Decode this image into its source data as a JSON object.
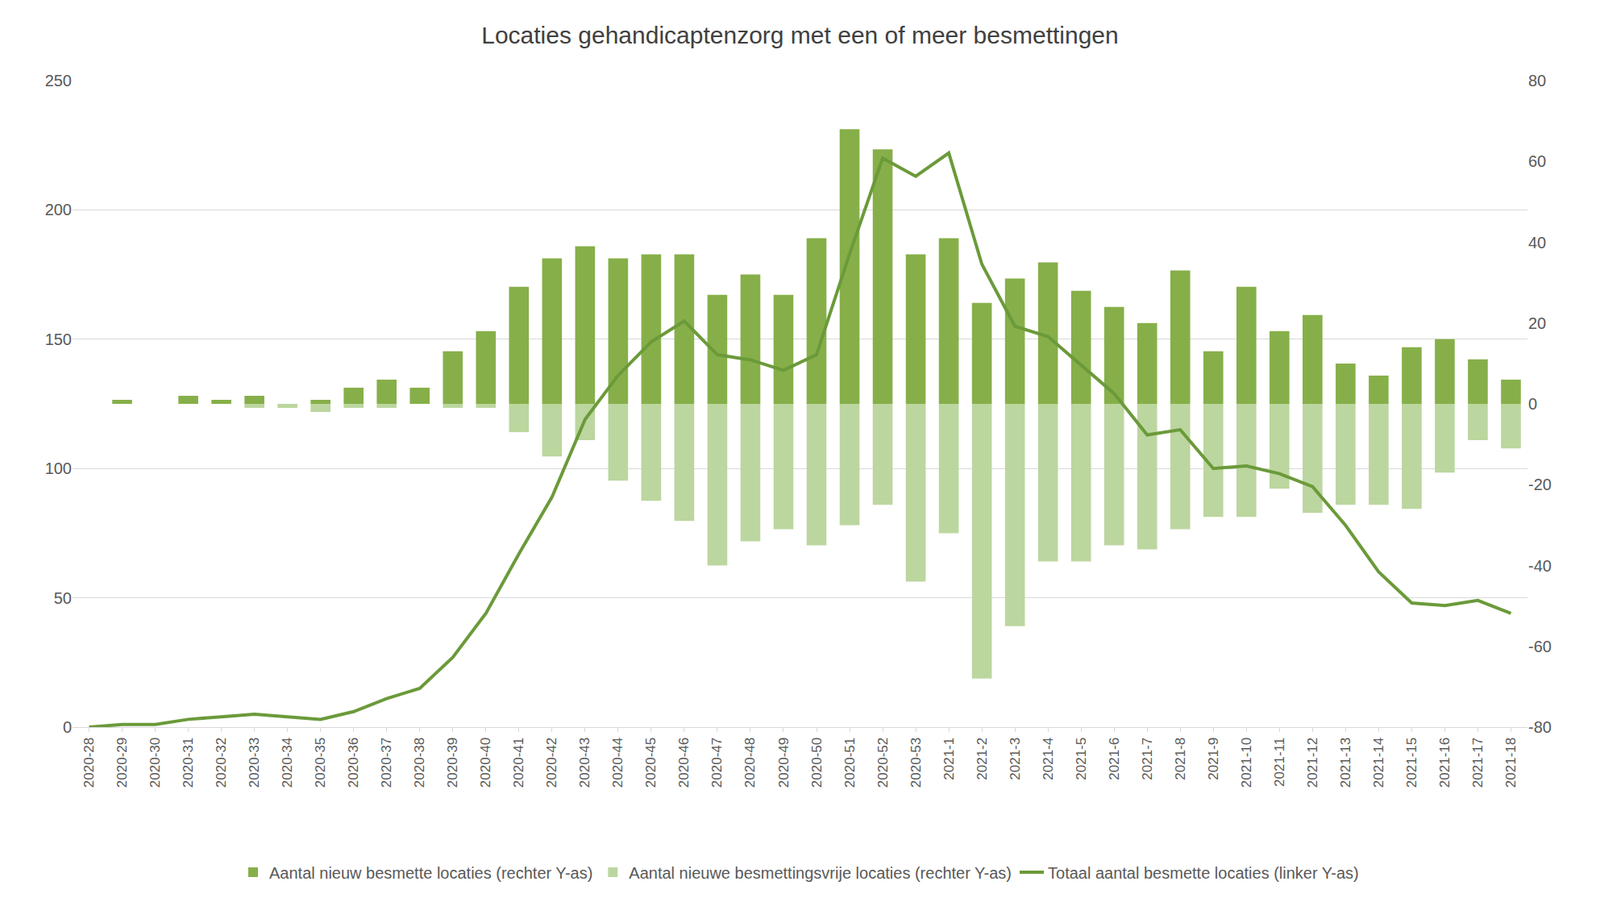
{
  "chart_data": {
    "type": "bar",
    "title": "Locaties gehandicaptenzorg met een of meer besmettingen",
    "categories": [
      "2020-28",
      "2020-29",
      "2020-30",
      "2020-31",
      "2020-32",
      "2020-33",
      "2020-34",
      "2020-35",
      "2020-36",
      "2020-37",
      "2020-38",
      "2020-39",
      "2020-40",
      "2020-41",
      "2020-42",
      "2020-43",
      "2020-44",
      "2020-45",
      "2020-46",
      "2020-47",
      "2020-48",
      "2020-49",
      "2020-50",
      "2020-51",
      "2020-52",
      "2020-53",
      "2021-1",
      "2021-2",
      "2021-3",
      "2021-4",
      "2021-5",
      "2021-6",
      "2021-7",
      "2021-8",
      "2021-9",
      "2021-10",
      "2021-11",
      "2021-12",
      "2021-13",
      "2021-14",
      "2021-15",
      "2021-16",
      "2021-17",
      "2021-18"
    ],
    "series": [
      {
        "name": "Aantal nieuw besmette locaties (rechter Y-as)",
        "type": "bar",
        "axis": "y2",
        "color": "#86af49",
        "values": [
          0,
          1,
          0,
          2,
          1,
          2,
          0,
          1,
          4,
          6,
          4,
          13,
          18,
          29,
          36,
          39,
          36,
          37,
          37,
          27,
          32,
          27,
          41,
          68,
          63,
          37,
          41,
          25,
          31,
          35,
          28,
          24,
          20,
          33,
          13,
          29,
          18,
          22,
          10,
          7,
          14,
          16,
          11,
          6
        ]
      },
      {
        "name": "Aantal nieuwe besmettingsvrije locaties (rechter Y-as)",
        "type": "bar",
        "axis": "y2",
        "color": "#bcd69f",
        "values": [
          0,
          0,
          0,
          0,
          0,
          -1,
          -1,
          -2,
          -1,
          -1,
          0,
          -1,
          -1,
          -7,
          -13,
          -9,
          -19,
          -24,
          -29,
          -40,
          -34,
          -31,
          -35,
          -30,
          -25,
          -44,
          -32,
          -68,
          -55,
          -39,
          -39,
          -35,
          -36,
          -31,
          -28,
          -28,
          -21,
          -27,
          -25,
          -25,
          -26,
          -17,
          -9,
          -11
        ]
      },
      {
        "name": "Totaal aantal besmette locaties (linker Y-as)",
        "type": "line",
        "color": "#6b9a3a",
        "values": [
          0,
          1,
          1,
          3,
          4,
          5,
          4,
          3,
          6,
          11,
          15,
          27,
          44,
          67,
          89,
          119,
          136,
          149,
          157,
          144,
          142,
          138,
          144,
          183,
          220,
          213,
          222,
          179,
          155,
          151,
          140,
          129,
          113,
          115,
          100,
          101,
          98,
          93,
          78,
          60,
          48,
          47,
          49,
          44
        ]
      }
    ],
    "ylim": [
      0,
      250
    ],
    "yticks": [
      0,
      50,
      100,
      150,
      200,
      250
    ],
    "y2lim": [
      -80,
      80
    ],
    "y2ticks": [
      -80,
      -60,
      -40,
      -20,
      0,
      20,
      40,
      60,
      80
    ],
    "grid": true,
    "legend": "bottom"
  }
}
